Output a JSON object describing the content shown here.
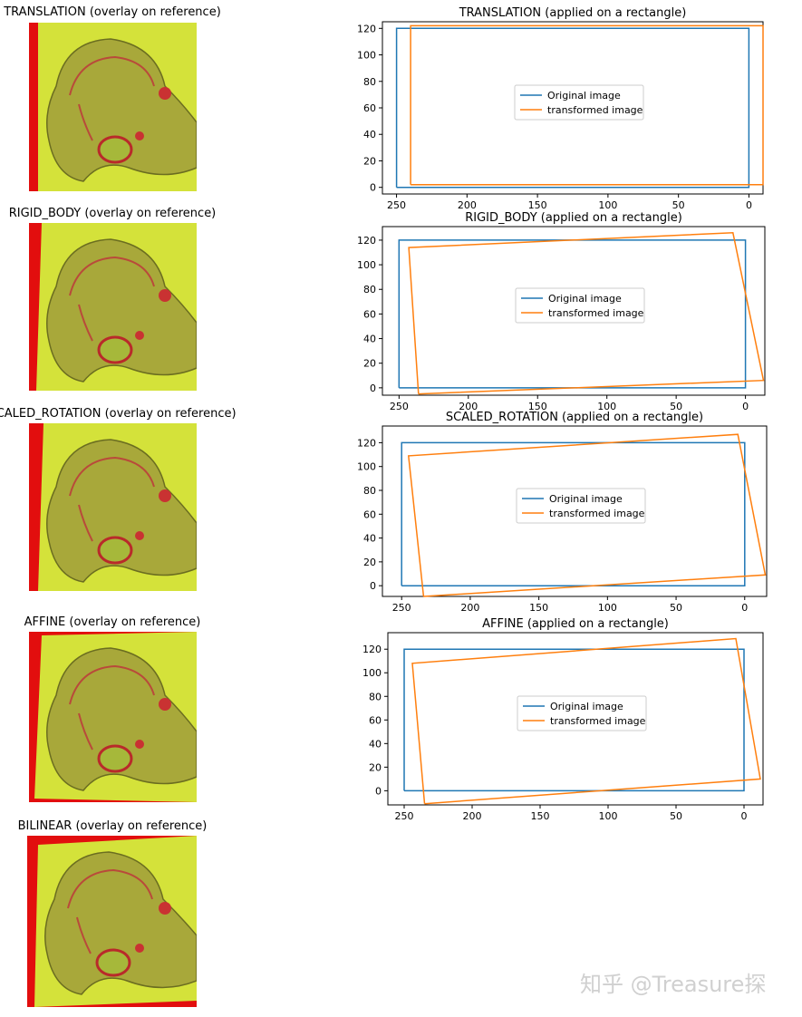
{
  "overlays": [
    {
      "title": "TRANSLATION (overlay on reference)"
    },
    {
      "title": "RIGID_BODY (overlay on reference)"
    },
    {
      "title": "SCALED_ROTATION (overlay on reference)"
    },
    {
      "title": "AFFINE (overlay on reference)"
    },
    {
      "title": "BILINEAR (overlay on reference)"
    }
  ],
  "chart_data": [
    {
      "type": "line",
      "title": "TRANSLATION (applied on a rectangle)",
      "xlim": [
        260,
        -10
      ],
      "ylim": [
        125,
        -5
      ],
      "xticks": [
        250,
        200,
        150,
        100,
        50,
        0
      ],
      "yticks": [
        0,
        20,
        40,
        60,
        80,
        100,
        120
      ],
      "legend": "center",
      "series": [
        {
          "name": "Original image",
          "color": "#1f77b4",
          "points": [
            [
              250,
              0
            ],
            [
              0,
              0
            ],
            [
              0,
              120
            ],
            [
              250,
              120
            ],
            [
              250,
              0
            ]
          ]
        },
        {
          "name": "transformed image",
          "color": "#ff7f0e",
          "points": [
            [
              240,
              2
            ],
            [
              -10,
              2
            ],
            [
              -10,
              122
            ],
            [
              240,
              122
            ],
            [
              240,
              2
            ]
          ]
        }
      ]
    },
    {
      "type": "line",
      "title": "RIGID_BODY (applied on a rectangle)",
      "xlim": [
        262,
        -14
      ],
      "ylim": [
        131,
        -6
      ],
      "xticks": [
        250,
        200,
        150,
        100,
        50,
        0
      ],
      "yticks": [
        0,
        20,
        40,
        60,
        80,
        100,
        120
      ],
      "legend": "center",
      "series": [
        {
          "name": "Original image",
          "color": "#1f77b4",
          "points": [
            [
              250,
              0
            ],
            [
              0,
              0
            ],
            [
              0,
              120
            ],
            [
              250,
              120
            ],
            [
              250,
              0
            ]
          ]
        },
        {
          "name": "transformed image",
          "color": "#ff7f0e",
          "points": [
            [
              236,
              -5
            ],
            [
              -13,
              6
            ],
            [
              9,
              126
            ],
            [
              243,
              114
            ],
            [
              236,
              -5
            ]
          ]
        }
      ]
    },
    {
      "type": "line",
      "title": "SCALED_ROTATION (applied on a rectangle)",
      "xlim": [
        264,
        -16
      ],
      "ylim": [
        134,
        -9
      ],
      "xticks": [
        250,
        200,
        150,
        100,
        50,
        0
      ],
      "yticks": [
        0,
        20,
        40,
        60,
        80,
        100,
        120
      ],
      "legend": "center",
      "series": [
        {
          "name": "Original image",
          "color": "#1f77b4",
          "points": [
            [
              250,
              0
            ],
            [
              0,
              0
            ],
            [
              0,
              120
            ],
            [
              250,
              120
            ],
            [
              250,
              0
            ]
          ]
        },
        {
          "name": "transformed image",
          "color": "#ff7f0e",
          "points": [
            [
              234,
              -9
            ],
            [
              -15,
              9
            ],
            [
              5,
              127
            ],
            [
              245,
              109
            ],
            [
              234,
              -9
            ]
          ]
        }
      ]
    },
    {
      "type": "line",
      "title": "AFFINE (applied on a rectangle)",
      "xlim": [
        262,
        -14
      ],
      "ylim": [
        134,
        -12
      ],
      "xticks": [
        250,
        200,
        150,
        100,
        50,
        0
      ],
      "yticks": [
        0,
        20,
        40,
        60,
        80,
        100,
        120
      ],
      "legend": "center",
      "series": [
        {
          "name": "Original image",
          "color": "#1f77b4",
          "points": [
            [
              250,
              0
            ],
            [
              0,
              0
            ],
            [
              0,
              120
            ],
            [
              250,
              120
            ],
            [
              250,
              0
            ]
          ]
        },
        {
          "name": "transformed image",
          "color": "#ff7f0e",
          "points": [
            [
              235,
              -11
            ],
            [
              -12,
              10
            ],
            [
              6,
              129
            ],
            [
              244,
              108
            ],
            [
              235,
              -11
            ]
          ]
        }
      ]
    }
  ],
  "watermark": "知乎 @Treasure探"
}
